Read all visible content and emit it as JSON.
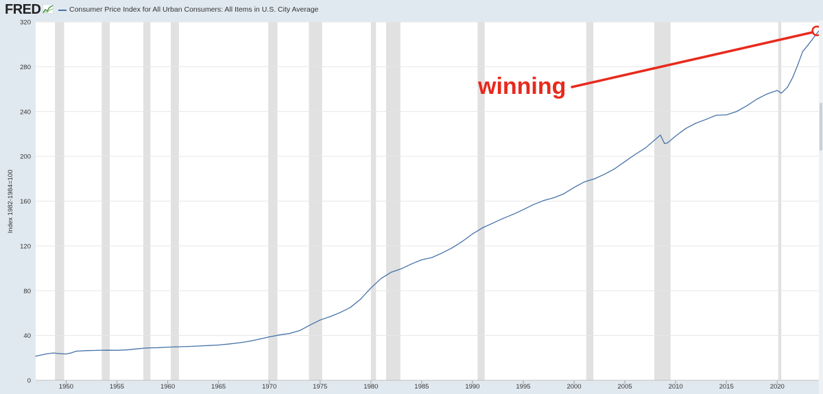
{
  "header": {
    "logo_text": "FRED",
    "logo_icon": "chart-line-icon",
    "series_title": "Consumer Price Index for All Urban Consumers: All Items in U.S. City Average"
  },
  "annotation": {
    "text": "winning",
    "color": "#e8291c",
    "points_to": {
      "x": 2023.9,
      "y": 312
    }
  },
  "colors": {
    "series": "#4572a7",
    "recession": "#e1e1e1",
    "background": "#e1e9f0",
    "plot": "#ffffff"
  },
  "chart_data": {
    "type": "line",
    "title": "Consumer Price Index for All Urban Consumers: All Items in U.S. City Average",
    "xlabel": "",
    "ylabel": "Index 1982-1984=100",
    "xlim": [
      1947,
      2024.1
    ],
    "ylim": [
      0,
      320
    ],
    "x_ticks": [
      "1950",
      "1955",
      "1960",
      "1965",
      "1970",
      "1975",
      "1980",
      "1985",
      "1990",
      "1995",
      "2000",
      "2005",
      "2010",
      "2015",
      "2020"
    ],
    "y_ticks": [
      "0",
      "40",
      "80",
      "120",
      "160",
      "200",
      "240",
      "280",
      "320"
    ],
    "grid": true,
    "legend": "top-left",
    "recessions": [
      [
        1948.9,
        1949.8
      ],
      [
        1953.5,
        1954.3
      ],
      [
        1957.6,
        1958.3
      ],
      [
        1960.3,
        1961.1
      ],
      [
        1969.9,
        1970.8
      ],
      [
        1973.9,
        1975.2
      ],
      [
        1980.0,
        1980.5
      ],
      [
        1981.5,
        1982.9
      ],
      [
        1990.5,
        1991.2
      ],
      [
        2001.2,
        2001.9
      ],
      [
        2007.9,
        2009.5
      ],
      [
        2020.1,
        2020.4
      ]
    ],
    "series": [
      {
        "name": "Consumer Price Index for All Urban Consumers: All Items in U.S. City Average",
        "x": [
          1947,
          1948,
          1948.7,
          1949.5,
          1950,
          1950.5,
          1951,
          1952,
          1953,
          1954,
          1955,
          1956,
          1957,
          1958,
          1959,
          1960,
          1961,
          1962,
          1963,
          1964,
          1965,
          1966,
          1967,
          1968,
          1969,
          1970,
          1971,
          1972,
          1973,
          1974,
          1975,
          1976,
          1977,
          1978,
          1979,
          1980,
          1981,
          1982,
          1983,
          1984,
          1985,
          1986,
          1987,
          1988,
          1989,
          1990,
          1991,
          1992,
          1993,
          1994,
          1995,
          1996,
          1997,
          1998,
          1999,
          2000,
          2001,
          2002,
          2003,
          2004,
          2005,
          2006,
          2007,
          2008.5,
          2008.9,
          2009.2,
          2010,
          2011,
          2012,
          2013,
          2014,
          2015,
          2016,
          2017,
          2018,
          2019,
          2020,
          2020.4,
          2021,
          2021.5,
          2022,
          2022.5,
          2023,
          2023.5,
          2024.1
        ],
        "values": [
          21.5,
          23.5,
          24.4,
          23.7,
          23.5,
          24.5,
          26.0,
          26.5,
          26.7,
          26.9,
          26.8,
          27.2,
          28.1,
          28.9,
          29.1,
          29.6,
          29.9,
          30.2,
          30.6,
          31.0,
          31.5,
          32.4,
          33.4,
          34.8,
          36.7,
          38.8,
          40.5,
          41.8,
          44.4,
          49.3,
          53.8,
          56.9,
          60.6,
          65.2,
          72.6,
          82.4,
          90.9,
          96.5,
          99.6,
          103.9,
          107.6,
          109.6,
          113.6,
          118.3,
          124.0,
          130.7,
          136.2,
          140.3,
          144.5,
          148.2,
          152.4,
          156.9,
          160.5,
          163.0,
          166.6,
          172.2,
          177.1,
          179.9,
          184.0,
          188.9,
          195.3,
          201.6,
          207.3,
          219.0,
          211.4,
          212.0,
          218.1,
          224.9,
          229.6,
          233.0,
          236.7,
          237.0,
          240.0,
          245.1,
          251.1,
          255.7,
          258.8,
          256.4,
          261.6,
          270.0,
          281.1,
          293.5,
          299.0,
          305.0,
          312.0
        ]
      }
    ]
  }
}
